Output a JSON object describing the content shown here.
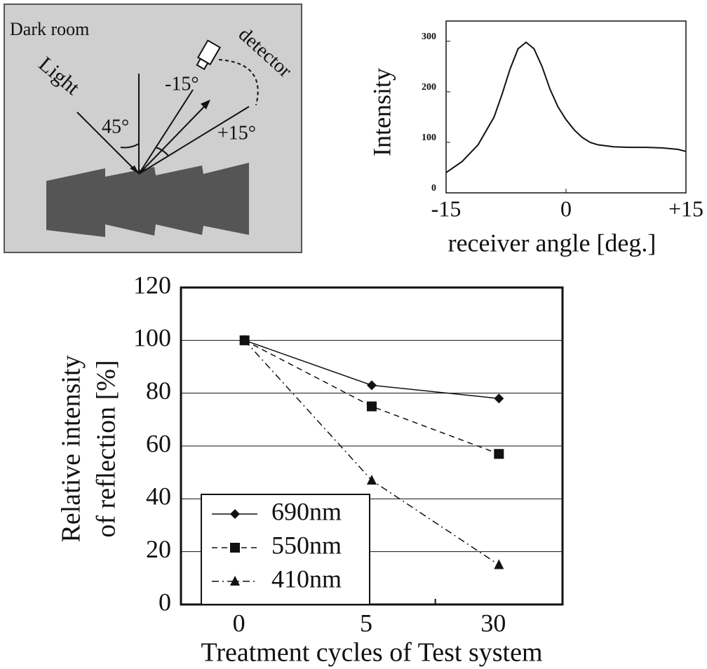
{
  "diagram": {
    "dark_room": "Dark room",
    "light": "Light",
    "angle_45": "45°",
    "angle_minus15": "-15°",
    "detector": "detector",
    "angle_plus15": "+15°"
  },
  "chart_data": [
    {
      "type": "line",
      "ylabel": "Intensity",
      "xlabel": "receiver angle [deg.]",
      "x": [
        -15,
        -13,
        -11,
        -9,
        -8,
        -7,
        -6,
        -5,
        -4,
        -3,
        -2,
        -1,
        0,
        1,
        2,
        3,
        4,
        6,
        8,
        10,
        12,
        14,
        15
      ],
      "values": [
        40,
        62,
        95,
        150,
        195,
        245,
        285,
        298,
        285,
        250,
        205,
        170,
        145,
        125,
        110,
        100,
        95,
        91,
        90,
        90,
        89,
        86,
        82
      ],
      "color": "#111111",
      "xlim": [
        -15,
        15
      ],
      "xticks": [
        -15,
        0,
        {
          "value": 15,
          "label": "+15"
        }
      ],
      "ylim": [
        0,
        340
      ],
      "yticks": [
        0,
        100,
        200,
        300
      ]
    },
    {
      "type": "line",
      "xlabel": "Treatment cycles of Test system",
      "ylabel": [
        "Relative intensity",
        "of reflection [%]"
      ],
      "categories": [
        "0",
        "5",
        "30"
      ],
      "series": [
        {
          "name": "690nm",
          "color": "#111111",
          "style": "solid",
          "marker": "diamond",
          "values": [
            100,
            83,
            78
          ]
        },
        {
          "name": "550nm",
          "color": "#111111",
          "style": "dashed",
          "marker": "square",
          "values": [
            100,
            75,
            57
          ]
        },
        {
          "name": "410nm",
          "color": "#111111",
          "style": "dashdot",
          "marker": "triangle",
          "values": [
            100,
            47,
            15
          ]
        }
      ],
      "ylim": [
        0,
        120
      ],
      "yticks": [
        0,
        20,
        40,
        60,
        80,
        100,
        120
      ],
      "grid": true,
      "legend": "lower-left"
    }
  ]
}
